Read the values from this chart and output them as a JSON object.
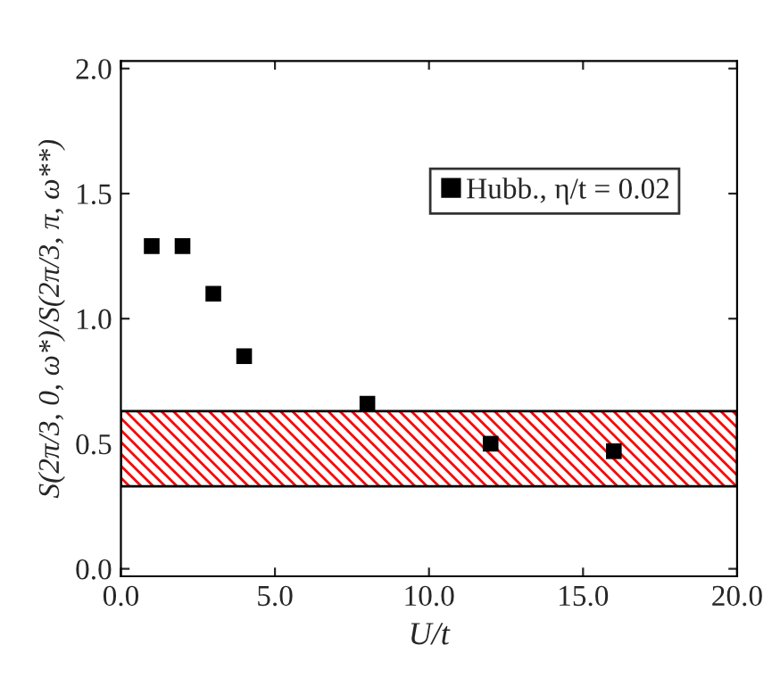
{
  "chart_data": {
    "type": "scatter",
    "xlabel": "U/t",
    "ylabel": "S(2π/3, 0, ω*)/S(2π/3, π, ω**)",
    "x": [
      1,
      2,
      3,
      4,
      8,
      12,
      16
    ],
    "series": [
      {
        "name": "Hubb., η/t = 0.02",
        "color": "#000000",
        "values": [
          1.29,
          1.29,
          1.1,
          0.85,
          0.66,
          0.5,
          0.47
        ]
      }
    ],
    "marker": "square",
    "xlim": [
      0,
      20
    ],
    "ylim": [
      -0.03,
      2.03
    ],
    "xticks": [
      {
        "value": 0,
        "label": "0.0"
      },
      {
        "value": 5,
        "label": "5.0"
      },
      {
        "value": 10,
        "label": "10.0"
      },
      {
        "value": 15,
        "label": "15.0"
      },
      {
        "value": 20,
        "label": "20.0"
      }
    ],
    "yticks": [
      {
        "value": 0,
        "label": "0.0"
      },
      {
        "value": 0.5,
        "label": "0.5"
      },
      {
        "value": 1,
        "label": "1.0"
      },
      {
        "value": 1.5,
        "label": "1.5"
      },
      {
        "value": 2,
        "label": "2.0"
      }
    ],
    "bands": [
      {
        "axis": "y",
        "from": 0.33,
        "to": 0.63,
        "color": "#ff0000"
      }
    ],
    "legend": "top right",
    "grid": false
  }
}
